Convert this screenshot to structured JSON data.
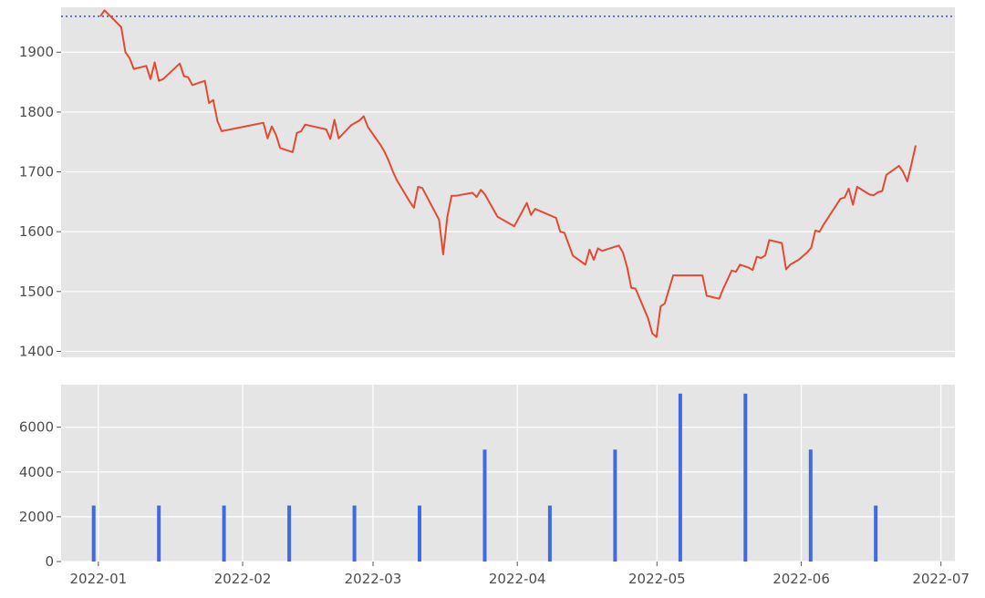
{
  "chart_data": [
    {
      "type": "line",
      "title": "",
      "xlabel": "",
      "ylabel": "",
      "ylim": [
        1390,
        1975
      ],
      "yticks": [
        "1400",
        "1500",
        "1600",
        "1700",
        "1800",
        "1900"
      ],
      "grid": true,
      "reference_line": {
        "y": 1960,
        "style": "dotted",
        "color": "#4169e1"
      },
      "series": [
        {
          "color": "#e24a33",
          "points": [
            [
              "2021-12-30",
              1960
            ],
            [
              "2021-12-31",
              1970
            ],
            [
              "2022-01-04",
              1942
            ],
            [
              "2022-01-05",
              1900
            ],
            [
              "2022-01-06",
              1890
            ],
            [
              "2022-01-07",
              1872
            ],
            [
              "2022-01-10",
              1877
            ],
            [
              "2022-01-11",
              1855
            ],
            [
              "2022-01-12",
              1883
            ],
            [
              "2022-01-13",
              1852
            ],
            [
              "2022-01-14",
              1855
            ],
            [
              "2022-01-18",
              1881
            ],
            [
              "2022-01-19",
              1860
            ],
            [
              "2022-01-20",
              1858
            ],
            [
              "2022-01-21",
              1845
            ],
            [
              "2022-01-24",
              1852
            ],
            [
              "2022-01-25",
              1815
            ],
            [
              "2022-01-26",
              1820
            ],
            [
              "2022-01-27",
              1785
            ],
            [
              "2022-01-28",
              1768
            ],
            [
              "2022-02-07",
              1782
            ],
            [
              "2022-02-08",
              1756
            ],
            [
              "2022-02-09",
              1776
            ],
            [
              "2022-02-10",
              1762
            ],
            [
              "2022-02-11",
              1740
            ],
            [
              "2022-02-14",
              1733
            ],
            [
              "2022-02-15",
              1765
            ],
            [
              "2022-02-16",
              1768
            ],
            [
              "2022-02-17",
              1779
            ],
            [
              "2022-02-22",
              1771
            ],
            [
              "2022-02-23",
              1755
            ],
            [
              "2022-02-24",
              1787
            ],
            [
              "2022-02-25",
              1756
            ],
            [
              "2022-02-28",
              1778
            ],
            [
              "2022-03-02",
              1786
            ],
            [
              "2022-03-03",
              1793
            ],
            [
              "2022-03-04",
              1775
            ],
            [
              "2022-03-07",
              1745
            ],
            [
              "2022-03-08",
              1733
            ],
            [
              "2022-03-09",
              1718
            ],
            [
              "2022-03-10",
              1700
            ],
            [
              "2022-03-11",
              1685
            ],
            [
              "2022-03-14",
              1650
            ],
            [
              "2022-03-15",
              1640
            ],
            [
              "2022-03-16",
              1675
            ],
            [
              "2022-03-17",
              1673
            ],
            [
              "2022-03-21",
              1620
            ],
            [
              "2022-03-22",
              1562
            ],
            [
              "2022-03-23",
              1625
            ],
            [
              "2022-03-24",
              1660
            ],
            [
              "2022-03-25",
              1660
            ],
            [
              "2022-03-29",
              1665
            ],
            [
              "2022-03-30",
              1658
            ],
            [
              "2022-03-31",
              1670
            ],
            [
              "2022-04-01",
              1662
            ],
            [
              "2022-04-04",
              1625
            ],
            [
              "2022-04-08",
              1609
            ],
            [
              "2022-04-11",
              1648
            ],
            [
              "2022-04-12",
              1628
            ],
            [
              "2022-04-13",
              1638
            ],
            [
              "2022-04-18",
              1623
            ],
            [
              "2022-04-19",
              1600
            ],
            [
              "2022-04-20",
              1598
            ],
            [
              "2022-04-22",
              1560
            ],
            [
              "2022-04-25",
              1545
            ],
            [
              "2022-04-26",
              1570
            ],
            [
              "2022-04-27",
              1553
            ],
            [
              "2022-04-28",
              1572
            ],
            [
              "2022-04-29",
              1568
            ],
            [
              "2022-05-03",
              1577
            ],
            [
              "2022-05-04",
              1565
            ],
            [
              "2022-05-05",
              1540
            ],
            [
              "2022-05-06",
              1506
            ],
            [
              "2022-05-07",
              1505
            ],
            [
              "2022-05-10",
              1455
            ],
            [
              "2022-05-11",
              1430
            ],
            [
              "2022-05-12",
              1424
            ],
            [
              "2022-05-13",
              1475
            ],
            [
              "2022-05-14",
              1480
            ],
            [
              "2022-05-16",
              1527
            ],
            [
              "2022-05-23",
              1527
            ],
            [
              "2022-05-24",
              1493
            ],
            [
              "2022-05-27",
              1488
            ],
            [
              "2022-05-28",
              1505
            ],
            [
              "2022-05-30",
              1535
            ],
            [
              "2022-05-31",
              1533
            ],
            [
              "2022-06-01",
              1545
            ],
            [
              "2022-06-03",
              1540
            ],
            [
              "2022-06-04",
              1536
            ],
            [
              "2022-06-05",
              1558
            ],
            [
              "2022-06-06",
              1556
            ],
            [
              "2022-06-07",
              1560
            ],
            [
              "2022-06-08",
              1586
            ],
            [
              "2022-06-11",
              1581
            ],
            [
              "2022-06-12",
              1537
            ],
            [
              "2022-06-13",
              1545
            ],
            [
              "2022-06-15",
              1553
            ],
            [
              "2022-06-17",
              1565
            ],
            [
              "2022-06-18",
              1573
            ],
            [
              "2022-06-19",
              1602
            ],
            [
              "2022-06-20",
              1600
            ],
            [
              "2022-06-21",
              1612
            ],
            [
              "2022-06-25",
              1655
            ],
            [
              "2022-06-26",
              1657
            ],
            [
              "2022-06-27",
              1672
            ],
            [
              "2022-06-28",
              1645
            ],
            [
              "2022-06-29",
              1675
            ],
            [
              "2022-07-02",
              1662
            ],
            [
              "2022-07-03",
              1661
            ],
            [
              "2022-07-04",
              1666
            ],
            [
              "2022-07-05",
              1668
            ],
            [
              "2022-07-06",
              1695
            ],
            [
              "2022-07-09",
              1710
            ],
            [
              "2022-07-10",
              1700
            ],
            [
              "2022-07-11",
              1684
            ],
            [
              "2022-07-12",
              1713
            ],
            [
              "2022-07-13",
              1744
            ]
          ]
        }
      ]
    },
    {
      "type": "bar",
      "title": "",
      "xlabel": "",
      "ylabel": "",
      "ylim": [
        0,
        7900
      ],
      "yticks": [
        "0",
        "2000",
        "4000",
        "6000"
      ],
      "xlim": [
        "2021-12-24",
        "2022-07-04"
      ],
      "xticks": [
        "2022-01",
        "2022-02",
        "2022-03",
        "2022-04",
        "2022-05",
        "2022-06",
        "2022-07"
      ],
      "grid": true,
      "color": "#4169e1",
      "bars": [
        [
          "2021-12-31",
          2500
        ],
        [
          "2022-01-14",
          2500
        ],
        [
          "2022-01-28",
          2500
        ],
        [
          "2022-02-11",
          2500
        ],
        [
          "2022-02-25",
          2500
        ],
        [
          "2022-03-11",
          2500
        ],
        [
          "2022-03-25",
          5000
        ],
        [
          "2022-04-08",
          2500
        ],
        [
          "2022-04-22",
          5000
        ],
        [
          "2022-05-06",
          7500
        ],
        [
          "2022-05-20",
          7500
        ],
        [
          "2022-06-03",
          5000
        ],
        [
          "2022-06-17",
          2500
        ]
      ]
    }
  ]
}
